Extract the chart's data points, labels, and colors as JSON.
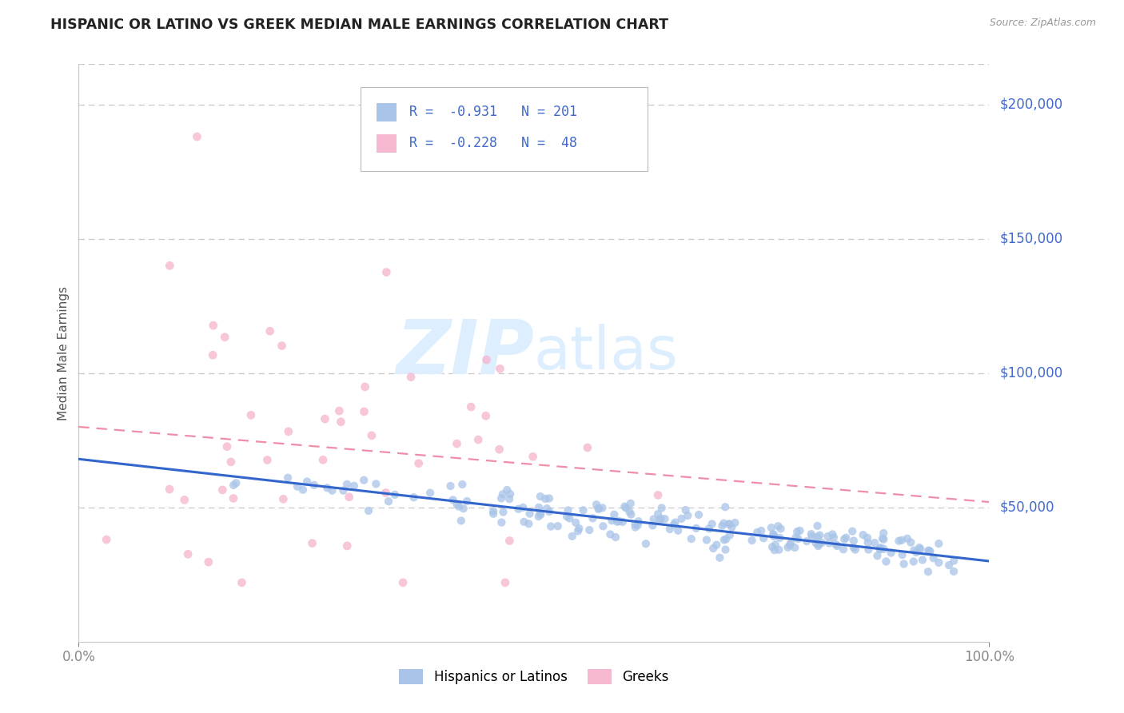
{
  "title": "HISPANIC OR LATINO VS GREEK MEDIAN MALE EARNINGS CORRELATION CHART",
  "source": "Source: ZipAtlas.com",
  "ylabel": "Median Male Earnings",
  "xlim": [
    0,
    1.0
  ],
  "ylim": [
    0,
    215000
  ],
  "ytick_values": [
    50000,
    100000,
    150000,
    200000
  ],
  "ytick_labels": [
    "$50,000",
    "$100,000",
    "$150,000",
    "$200,000"
  ],
  "blue_dot_color": "#a8c4e8",
  "pink_dot_color": "#f5b8d0",
  "blue_line_color": "#3366cc",
  "pink_line_color": "#e8507a",
  "grid_color": "#c8c8c8",
  "text_color": "#4169cc",
  "legend_R1": "-0.931",
  "legend_N1": "201",
  "legend_R2": "-0.228",
  "legend_N2": " 48",
  "legend_label1": "Hispanics or Latinos",
  "legend_label2": "Greeks",
  "watermark_zip": "ZIP",
  "watermark_atlas": "atlas",
  "watermark_color": "#ddeeff",
  "blue_intercept": 68000,
  "blue_slope": -38000,
  "pink_intercept": 80000,
  "pink_slope": -28000,
  "blue_N": 201,
  "pink_N": 48
}
